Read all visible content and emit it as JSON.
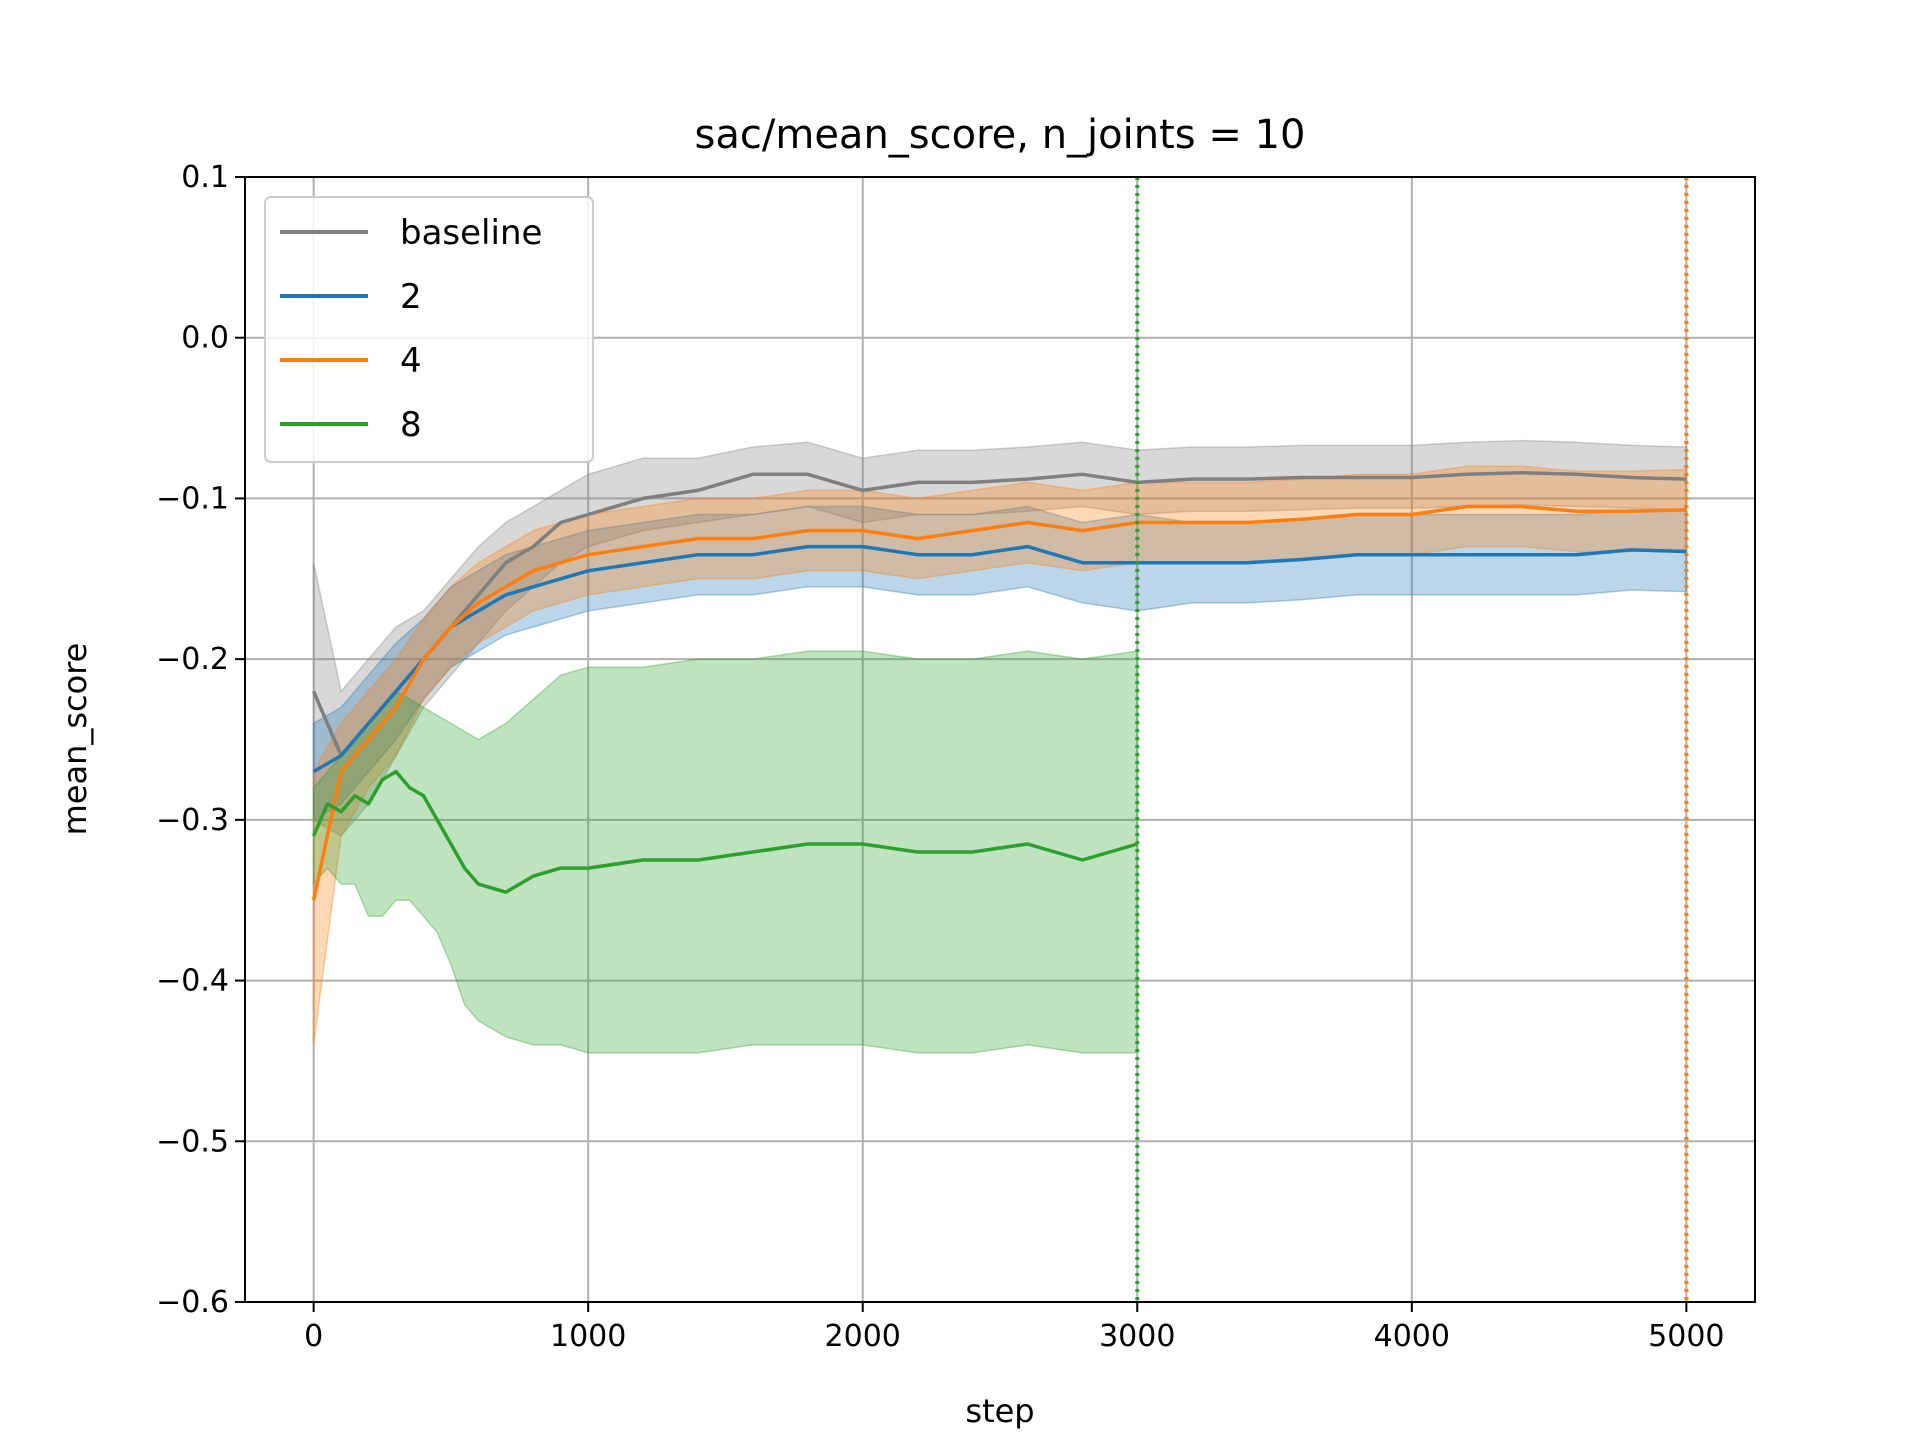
{
  "chart_data": {
    "type": "line",
    "title": "sac/mean_score, n_joints = 10",
    "xlabel": "step",
    "ylabel": "mean_score",
    "xlim": [
      -250,
      5250
    ],
    "ylim": [
      -0.6,
      0.1
    ],
    "xticks": [
      0,
      1000,
      2000,
      3000,
      4000,
      5000
    ],
    "xtick_labels": [
      "0",
      "1000",
      "2000",
      "3000",
      "4000",
      "5000"
    ],
    "yticks": [
      0.1,
      0.0,
      -0.1,
      -0.2,
      -0.3,
      -0.4,
      -0.5,
      -0.6
    ],
    "ytick_labels": [
      "0.1",
      "0.0",
      "−0.1",
      "−0.2",
      "−0.3",
      "−0.4",
      "−0.5",
      "−0.6"
    ],
    "grid": true,
    "legend_position": "top-left",
    "series": [
      {
        "name": "baseline",
        "color": "#7f7f7f",
        "x": [
          0,
          100,
          200,
          300,
          400,
          500,
          600,
          700,
          800,
          900,
          1000,
          1200,
          1400,
          1600,
          1800,
          2000,
          2200,
          2400,
          2600,
          2800,
          3000,
          3200,
          3400,
          3600,
          3800,
          4000,
          4200,
          4400,
          4600,
          4800,
          5000
        ],
        "y": [
          -0.22,
          -0.26,
          -0.24,
          -0.22,
          -0.2,
          -0.18,
          -0.16,
          -0.14,
          -0.13,
          -0.115,
          -0.11,
          -0.1,
          -0.095,
          -0.085,
          -0.085,
          -0.095,
          -0.09,
          -0.09,
          -0.088,
          -0.085,
          -0.09,
          -0.088,
          -0.088,
          -0.087,
          -0.087,
          -0.087,
          -0.085,
          -0.084,
          -0.085,
          -0.087,
          -0.088
        ],
        "lower": [
          -0.3,
          -0.31,
          -0.29,
          -0.26,
          -0.23,
          -0.21,
          -0.19,
          -0.17,
          -0.155,
          -0.14,
          -0.13,
          -0.12,
          -0.115,
          -0.11,
          -0.105,
          -0.115,
          -0.11,
          -0.11,
          -0.108,
          -0.105,
          -0.11,
          -0.108,
          -0.108,
          -0.107,
          -0.106,
          -0.106,
          -0.105,
          -0.104,
          -0.105,
          -0.106,
          -0.107
        ],
        "upper": [
          -0.14,
          -0.22,
          -0.2,
          -0.18,
          -0.17,
          -0.15,
          -0.13,
          -0.115,
          -0.105,
          -0.095,
          -0.085,
          -0.075,
          -0.075,
          -0.068,
          -0.065,
          -0.075,
          -0.07,
          -0.07,
          -0.068,
          -0.065,
          -0.07,
          -0.068,
          -0.068,
          -0.067,
          -0.067,
          -0.067,
          -0.065,
          -0.064,
          -0.065,
          -0.067,
          -0.068
        ]
      },
      {
        "name": "2",
        "color": "#1f77b4",
        "x": [
          0,
          100,
          200,
          300,
          400,
          500,
          600,
          700,
          800,
          900,
          1000,
          1200,
          1400,
          1600,
          1800,
          2000,
          2200,
          2400,
          2600,
          2800,
          3000,
          3200,
          3400,
          3600,
          3800,
          4000,
          4200,
          4400,
          4600,
          4800,
          5000
        ],
        "y": [
          -0.27,
          -0.26,
          -0.24,
          -0.22,
          -0.2,
          -0.18,
          -0.17,
          -0.16,
          -0.155,
          -0.15,
          -0.145,
          -0.14,
          -0.135,
          -0.135,
          -0.13,
          -0.13,
          -0.135,
          -0.135,
          -0.13,
          -0.14,
          -0.14,
          -0.14,
          -0.14,
          -0.138,
          -0.135,
          -0.135,
          -0.135,
          -0.135,
          -0.135,
          -0.132,
          -0.133
        ],
        "lower": [
          -0.3,
          -0.29,
          -0.27,
          -0.25,
          -0.225,
          -0.205,
          -0.195,
          -0.185,
          -0.18,
          -0.175,
          -0.17,
          -0.165,
          -0.16,
          -0.16,
          -0.155,
          -0.155,
          -0.16,
          -0.16,
          -0.155,
          -0.165,
          -0.17,
          -0.165,
          -0.165,
          -0.163,
          -0.16,
          -0.16,
          -0.16,
          -0.16,
          -0.16,
          -0.157,
          -0.158
        ],
        "upper": [
          -0.24,
          -0.23,
          -0.21,
          -0.19,
          -0.175,
          -0.155,
          -0.145,
          -0.135,
          -0.13,
          -0.125,
          -0.12,
          -0.115,
          -0.11,
          -0.11,
          -0.105,
          -0.105,
          -0.11,
          -0.11,
          -0.105,
          -0.115,
          -0.11,
          -0.115,
          -0.115,
          -0.113,
          -0.11,
          -0.11,
          -0.11,
          -0.11,
          -0.11,
          -0.107,
          -0.108
        ]
      },
      {
        "name": "4",
        "color": "#ff7f0e",
        "x": [
          0,
          100,
          200,
          300,
          400,
          500,
          600,
          700,
          800,
          900,
          1000,
          1200,
          1400,
          1600,
          1800,
          2000,
          2200,
          2400,
          2600,
          2800,
          3000,
          3200,
          3400,
          3600,
          3800,
          4000,
          4200,
          4400,
          4600,
          4800,
          5000
        ],
        "y": [
          -0.35,
          -0.27,
          -0.25,
          -0.23,
          -0.2,
          -0.18,
          -0.165,
          -0.155,
          -0.145,
          -0.14,
          -0.135,
          -0.13,
          -0.125,
          -0.125,
          -0.12,
          -0.12,
          -0.125,
          -0.12,
          -0.115,
          -0.12,
          -0.115,
          -0.115,
          -0.115,
          -0.113,
          -0.11,
          -0.11,
          -0.105,
          -0.105,
          -0.108,
          -0.108,
          -0.107
        ],
        "lower": [
          -0.44,
          -0.31,
          -0.28,
          -0.26,
          -0.225,
          -0.205,
          -0.19,
          -0.18,
          -0.17,
          -0.165,
          -0.16,
          -0.155,
          -0.15,
          -0.15,
          -0.145,
          -0.145,
          -0.15,
          -0.145,
          -0.14,
          -0.145,
          -0.14,
          -0.14,
          -0.14,
          -0.138,
          -0.135,
          -0.135,
          -0.13,
          -0.13,
          -0.133,
          -0.133,
          -0.132
        ],
        "upper": [
          -0.27,
          -0.24,
          -0.22,
          -0.2,
          -0.175,
          -0.155,
          -0.14,
          -0.13,
          -0.12,
          -0.115,
          -0.11,
          -0.105,
          -0.1,
          -0.1,
          -0.095,
          -0.095,
          -0.1,
          -0.095,
          -0.09,
          -0.095,
          -0.09,
          -0.09,
          -0.09,
          -0.088,
          -0.085,
          -0.085,
          -0.08,
          -0.08,
          -0.083,
          -0.083,
          -0.082
        ]
      },
      {
        "name": "8",
        "color": "#2ca02c",
        "x": [
          0,
          50,
          100,
          150,
          200,
          250,
          300,
          350,
          400,
          450,
          500,
          550,
          600,
          700,
          800,
          900,
          1000,
          1200,
          1400,
          1600,
          1800,
          2000,
          2200,
          2400,
          2600,
          2800,
          3000
        ],
        "y": [
          -0.31,
          -0.29,
          -0.295,
          -0.285,
          -0.29,
          -0.275,
          -0.27,
          -0.28,
          -0.285,
          -0.3,
          -0.315,
          -0.33,
          -0.34,
          -0.345,
          -0.335,
          -0.33,
          -0.33,
          -0.325,
          -0.325,
          -0.32,
          -0.315,
          -0.315,
          -0.32,
          -0.32,
          -0.315,
          -0.325,
          -0.315
        ],
        "lower": [
          -0.34,
          -0.33,
          -0.34,
          -0.34,
          -0.36,
          -0.36,
          -0.35,
          -0.35,
          -0.36,
          -0.37,
          -0.39,
          -0.415,
          -0.425,
          -0.435,
          -0.44,
          -0.44,
          -0.445,
          -0.445,
          -0.445,
          -0.44,
          -0.44,
          -0.44,
          -0.445,
          -0.445,
          -0.44,
          -0.445,
          -0.445
        ],
        "upper": [
          -0.28,
          -0.27,
          -0.26,
          -0.25,
          -0.24,
          -0.23,
          -0.22,
          -0.225,
          -0.23,
          -0.235,
          -0.24,
          -0.245,
          -0.25,
          -0.24,
          -0.225,
          -0.21,
          -0.205,
          -0.205,
          -0.2,
          -0.2,
          -0.195,
          -0.195,
          -0.2,
          -0.2,
          -0.195,
          -0.2,
          -0.195
        ]
      }
    ],
    "vertical_lines": [
      {
        "x": 3000,
        "color": "#2ca02c",
        "style": "dotted"
      },
      {
        "x": 5000,
        "color": "#2ca02c",
        "style": "dotted"
      },
      {
        "x": 5000,
        "color": "#ff7f0e",
        "style": "dotted"
      }
    ]
  }
}
